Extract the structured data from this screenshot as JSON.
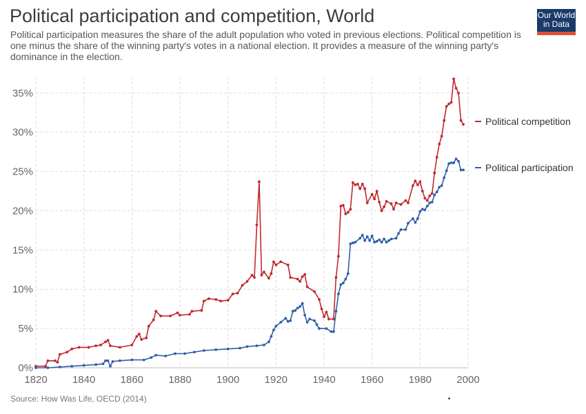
{
  "header": {
    "title": "Political participation and competition, World",
    "subtitle": "Political participation measures the share of the adult population who voted in previous elections. Political competition is one minus the share of the winning party's votes in a national election. It provides a measure of the winning party's dominance in the election.",
    "logo_line1": "Our World",
    "logo_line2": "in Data"
  },
  "footer": {
    "source": "Source: How Was Life, OECD (2014)"
  },
  "colors": {
    "competition": "#c0282e",
    "participation": "#2f5fa6",
    "grid": "#dddddd",
    "logo_bg": "#1a3a6b",
    "logo_accent": "#e04e39"
  },
  "chart_data": {
    "type": "line",
    "title": "Political participation and competition, World",
    "xlim": [
      1820,
      2000
    ],
    "ylim": [
      0,
      37
    ],
    "x_ticks": [
      1820,
      1840,
      1860,
      1880,
      1900,
      1920,
      1940,
      1960,
      1980,
      2000
    ],
    "y_ticks": [
      0,
      5,
      10,
      15,
      20,
      25,
      30,
      35
    ],
    "y_tick_labels": [
      "0%",
      "5%",
      "10%",
      "15%",
      "20%",
      "25%",
      "30%",
      "35%"
    ],
    "grid": true,
    "legend_position": "right (labels at line ends)",
    "series": [
      {
        "name": "Political competition",
        "color": "#c0282e",
        "points": [
          [
            1820,
            0.2
          ],
          [
            1824,
            0.2
          ],
          [
            1825,
            0.9
          ],
          [
            1828,
            0.9
          ],
          [
            1829,
            0.7
          ],
          [
            1830,
            1.7
          ],
          [
            1833,
            2.0
          ],
          [
            1835,
            2.4
          ],
          [
            1838,
            2.6
          ],
          [
            1842,
            2.6
          ],
          [
            1845,
            2.8
          ],
          [
            1847,
            2.9
          ],
          [
            1849,
            3.3
          ],
          [
            1850,
            3.5
          ],
          [
            1851,
            2.8
          ],
          [
            1855,
            2.6
          ],
          [
            1860,
            2.9
          ],
          [
            1862,
            4.0
          ],
          [
            1863,
            4.3
          ],
          [
            1864,
            3.6
          ],
          [
            1866,
            3.8
          ],
          [
            1867,
            5.3
          ],
          [
            1869,
            6.1
          ],
          [
            1870,
            7.2
          ],
          [
            1872,
            6.6
          ],
          [
            1876,
            6.6
          ],
          [
            1879,
            7.0
          ],
          [
            1880,
            6.7
          ],
          [
            1884,
            6.8
          ],
          [
            1885,
            7.2
          ],
          [
            1889,
            7.3
          ],
          [
            1890,
            8.5
          ],
          [
            1892,
            8.8
          ],
          [
            1895,
            8.7
          ],
          [
            1897,
            8.5
          ],
          [
            1900,
            8.6
          ],
          [
            1902,
            9.4
          ],
          [
            1904,
            9.5
          ],
          [
            1906,
            10.5
          ],
          [
            1908,
            11.0
          ],
          [
            1910,
            11.8
          ],
          [
            1911,
            11.5
          ],
          [
            1912,
            18.2
          ],
          [
            1913,
            23.7
          ],
          [
            1914,
            11.8
          ],
          [
            1915,
            12.2
          ],
          [
            1917,
            11.4
          ],
          [
            1918,
            12.0
          ],
          [
            1919,
            13.5
          ],
          [
            1920,
            13.1
          ],
          [
            1922,
            13.5
          ],
          [
            1925,
            13.1
          ],
          [
            1926,
            11.5
          ],
          [
            1929,
            11.3
          ],
          [
            1930,
            11.0
          ],
          [
            1931,
            11.6
          ],
          [
            1932,
            11.9
          ],
          [
            1933,
            10.3
          ],
          [
            1936,
            9.7
          ],
          [
            1938,
            8.7
          ],
          [
            1939,
            7.5
          ],
          [
            1940,
            6.5
          ],
          [
            1941,
            7.1
          ],
          [
            1942,
            6.2
          ],
          [
            1944,
            6.2
          ],
          [
            1945,
            11.5
          ],
          [
            1946,
            14.2
          ],
          [
            1947,
            20.6
          ],
          [
            1948,
            20.7
          ],
          [
            1949,
            19.6
          ],
          [
            1950,
            19.8
          ],
          [
            1951,
            20.2
          ],
          [
            1952,
            23.6
          ],
          [
            1953,
            23.3
          ],
          [
            1954,
            23.4
          ],
          [
            1955,
            22.8
          ],
          [
            1956,
            23.4
          ],
          [
            1957,
            22.8
          ],
          [
            1958,
            21.0
          ],
          [
            1960,
            22.1
          ],
          [
            1961,
            21.5
          ],
          [
            1962,
            22.5
          ],
          [
            1963,
            21.1
          ],
          [
            1964,
            20.0
          ],
          [
            1965,
            20.5
          ],
          [
            1966,
            21.2
          ],
          [
            1968,
            20.9
          ],
          [
            1969,
            20.2
          ],
          [
            1970,
            21.0
          ],
          [
            1972,
            20.8
          ],
          [
            1974,
            21.3
          ],
          [
            1975,
            21.0
          ],
          [
            1977,
            23.2
          ],
          [
            1978,
            23.8
          ],
          [
            1979,
            23.3
          ],
          [
            1980,
            23.7
          ],
          [
            1981,
            22.5
          ],
          [
            1982,
            21.6
          ],
          [
            1983,
            21.3
          ],
          [
            1984,
            21.9
          ],
          [
            1985,
            22.2
          ],
          [
            1986,
            24.8
          ],
          [
            1987,
            26.8
          ],
          [
            1988,
            28.5
          ],
          [
            1989,
            29.5
          ],
          [
            1990,
            31.5
          ],
          [
            1991,
            33.3
          ],
          [
            1992,
            33.6
          ],
          [
            1993,
            33.8
          ],
          [
            1994,
            36.8
          ],
          [
            1995,
            35.6
          ],
          [
            1996,
            35.0
          ],
          [
            1997,
            31.5
          ],
          [
            1998,
            31.0
          ]
        ]
      },
      {
        "name": "Political participation",
        "color": "#2f5fa6",
        "points": [
          [
            1820,
            0.0
          ],
          [
            1825,
            0.0
          ],
          [
            1830,
            0.1
          ],
          [
            1835,
            0.2
          ],
          [
            1840,
            0.3
          ],
          [
            1845,
            0.4
          ],
          [
            1848,
            0.5
          ],
          [
            1849,
            0.9
          ],
          [
            1850,
            0.9
          ],
          [
            1851,
            0.2
          ],
          [
            1852,
            0.8
          ],
          [
            1855,
            0.9
          ],
          [
            1860,
            1.0
          ],
          [
            1865,
            1.0
          ],
          [
            1868,
            1.3
          ],
          [
            1870,
            1.6
          ],
          [
            1874,
            1.5
          ],
          [
            1878,
            1.8
          ],
          [
            1882,
            1.8
          ],
          [
            1886,
            2.0
          ],
          [
            1890,
            2.2
          ],
          [
            1895,
            2.3
          ],
          [
            1900,
            2.4
          ],
          [
            1905,
            2.5
          ],
          [
            1908,
            2.7
          ],
          [
            1912,
            2.8
          ],
          [
            1915,
            2.9
          ],
          [
            1917,
            3.3
          ],
          [
            1918,
            4.0
          ],
          [
            1919,
            4.8
          ],
          [
            1920,
            5.3
          ],
          [
            1922,
            5.8
          ],
          [
            1924,
            6.3
          ],
          [
            1925,
            5.9
          ],
          [
            1926,
            6.0
          ],
          [
            1927,
            7.2
          ],
          [
            1928,
            7.3
          ],
          [
            1929,
            7.6
          ],
          [
            1930,
            7.8
          ],
          [
            1931,
            8.2
          ],
          [
            1932,
            6.7
          ],
          [
            1933,
            5.8
          ],
          [
            1934,
            6.2
          ],
          [
            1936,
            6.0
          ],
          [
            1937,
            5.5
          ],
          [
            1938,
            5.0
          ],
          [
            1941,
            5.0
          ],
          [
            1943,
            4.6
          ],
          [
            1944,
            4.6
          ],
          [
            1945,
            7.2
          ],
          [
            1946,
            9.4
          ],
          [
            1947,
            10.6
          ],
          [
            1948,
            10.8
          ],
          [
            1949,
            11.3
          ],
          [
            1950,
            12.0
          ],
          [
            1951,
            15.8
          ],
          [
            1952,
            15.9
          ],
          [
            1953,
            16.0
          ],
          [
            1955,
            16.5
          ],
          [
            1956,
            16.9
          ],
          [
            1957,
            16.2
          ],
          [
            1958,
            16.7
          ],
          [
            1959,
            16.2
          ],
          [
            1960,
            16.8
          ],
          [
            1961,
            16.0
          ],
          [
            1962,
            16.1
          ],
          [
            1963,
            16.3
          ],
          [
            1964,
            16.0
          ],
          [
            1965,
            16.4
          ],
          [
            1966,
            16.0
          ],
          [
            1967,
            16.2
          ],
          [
            1968,
            16.4
          ],
          [
            1970,
            16.5
          ],
          [
            1971,
            17.1
          ],
          [
            1972,
            17.6
          ],
          [
            1974,
            17.6
          ],
          [
            1975,
            18.4
          ],
          [
            1977,
            19.0
          ],
          [
            1978,
            18.5
          ],
          [
            1979,
            19.0
          ],
          [
            1980,
            19.9
          ],
          [
            1981,
            20.2
          ],
          [
            1982,
            20.1
          ],
          [
            1983,
            20.6
          ],
          [
            1984,
            21.0
          ],
          [
            1985,
            21.1
          ],
          [
            1986,
            22.0
          ],
          [
            1987,
            22.4
          ],
          [
            1988,
            23.0
          ],
          [
            1989,
            23.2
          ],
          [
            1990,
            24.2
          ],
          [
            1991,
            25.1
          ],
          [
            1992,
            26.0
          ],
          [
            1993,
            26.1
          ],
          [
            1994,
            26.1
          ],
          [
            1995,
            26.6
          ],
          [
            1996,
            26.3
          ],
          [
            1997,
            25.2
          ],
          [
            1998,
            25.2
          ]
        ]
      }
    ]
  }
}
